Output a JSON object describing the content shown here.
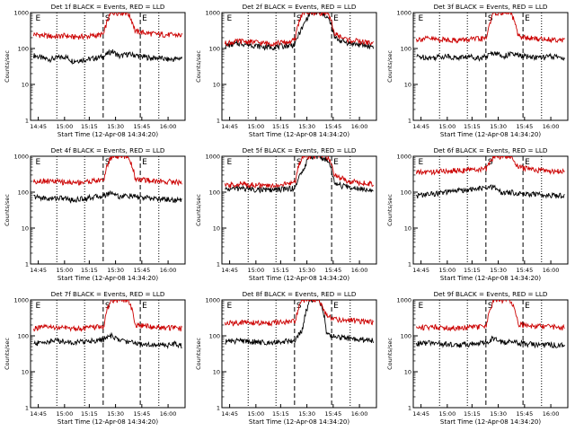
{
  "colors": {
    "events": "#000000",
    "lld": "#cc0000",
    "axis": "#000000"
  },
  "common": {
    "xlabel": "Start Time (12-Apr-08 14:34:20)",
    "ylabel": "Counts/sec",
    "xticks": [
      "14:45",
      "15:00",
      "15:15",
      "15:30",
      "15:45",
      "16:00"
    ],
    "yticks": [
      "1",
      "10",
      "100",
      "1000"
    ],
    "markers": [
      "E",
      "S",
      "E"
    ],
    "yscale": "log",
    "ylim": [
      1,
      1000
    ]
  },
  "chart_data": [
    {
      "type": "line",
      "title": "Det 1f BLACK = Events, RED = LLD",
      "series": [
        {
          "name": "Events",
          "style": "low",
          "values": [
            65,
            55,
            50,
            55,
            60,
            45,
            48,
            50,
            55,
            60,
            85,
            60,
            70,
            65,
            60,
            55,
            55,
            50,
            50,
            55
          ]
        },
        {
          "name": "LLD",
          "style": "high",
          "values": [
            250,
            235,
            220,
            215,
            230,
            210,
            215,
            220,
            230,
            250,
            1000,
            1000,
            1000,
            300,
            280,
            260,
            250,
            240,
            240,
            230
          ]
        }
      ]
    },
    {
      "type": "line",
      "title": "Det 2f BLACK = Events, RED = LLD",
      "series": [
        {
          "name": "Events",
          "style": "low",
          "values": [
            120,
            130,
            140,
            130,
            120,
            110,
            110,
            115,
            120,
            130,
            400,
            1000,
            1000,
            800,
            200,
            160,
            140,
            130,
            120,
            115
          ]
        },
        {
          "name": "LLD",
          "style": "high",
          "values": [
            140,
            150,
            160,
            155,
            150,
            140,
            140,
            145,
            150,
            170,
            1000,
            1000,
            1000,
            1000,
            260,
            200,
            170,
            160,
            150,
            140
          ]
        }
      ]
    },
    {
      "type": "line",
      "title": "Det 3f BLACK = Events, RED = LLD",
      "series": [
        {
          "name": "Events",
          "style": "low",
          "values": [
            60,
            58,
            55,
            60,
            62,
            55,
            58,
            60,
            55,
            60,
            80,
            60,
            70,
            65,
            60,
            58,
            55,
            60,
            58,
            55
          ]
        },
        {
          "name": "LLD",
          "style": "high",
          "values": [
            180,
            190,
            185,
            175,
            180,
            170,
            175,
            180,
            185,
            190,
            1000,
            1000,
            1000,
            220,
            200,
            190,
            185,
            180,
            180,
            175
          ]
        }
      ]
    },
    {
      "type": "line",
      "title": "Det 4f BLACK = Events, RED = LLD",
      "series": [
        {
          "name": "Events",
          "style": "low",
          "values": [
            75,
            70,
            65,
            70,
            68,
            60,
            65,
            70,
            75,
            80,
            100,
            75,
            80,
            75,
            70,
            68,
            65,
            65,
            60,
            60
          ]
        },
        {
          "name": "LLD",
          "style": "high",
          "values": [
            200,
            210,
            205,
            195,
            190,
            185,
            190,
            200,
            210,
            220,
            1000,
            1000,
            1000,
            240,
            220,
            210,
            200,
            200,
            195,
            190
          ]
        }
      ]
    },
    {
      "type": "line",
      "title": "Det 5f BLACK = Events, RED = LLD",
      "series": [
        {
          "name": "Events",
          "style": "low",
          "values": [
            120,
            125,
            130,
            125,
            120,
            115,
            115,
            120,
            125,
            130,
            400,
            1000,
            1000,
            800,
            180,
            150,
            140,
            130,
            125,
            120
          ]
        },
        {
          "name": "LLD",
          "style": "high",
          "values": [
            150,
            160,
            170,
            165,
            160,
            150,
            150,
            160,
            170,
            190,
            1000,
            1000,
            1000,
            1000,
            300,
            240,
            200,
            190,
            180,
            170
          ]
        }
      ]
    },
    {
      "type": "line",
      "title": "Det 6f BLACK = Events, RED = LLD",
      "series": [
        {
          "name": "Events",
          "style": "low",
          "values": [
            80,
            85,
            90,
            95,
            100,
            110,
            115,
            120,
            125,
            130,
            140,
            90,
            100,
            95,
            90,
            88,
            85,
            85,
            80,
            80
          ]
        },
        {
          "name": "LLD",
          "style": "high",
          "values": [
            350,
            360,
            370,
            380,
            390,
            400,
            410,
            420,
            430,
            450,
            1000,
            1000,
            1000,
            500,
            460,
            430,
            400,
            390,
            380,
            370
          ]
        }
      ]
    },
    {
      "type": "line",
      "title": "Det 7f BLACK = Events, RED = LLD",
      "series": [
        {
          "name": "Events",
          "style": "low",
          "values": [
            60,
            65,
            70,
            75,
            70,
            65,
            68,
            72,
            75,
            80,
            100,
            75,
            70,
            65,
            60,
            58,
            55,
            55,
            60,
            55
          ]
        },
        {
          "name": "LLD",
          "style": "high",
          "values": [
            160,
            170,
            175,
            170,
            165,
            160,
            165,
            170,
            175,
            180,
            1000,
            1000,
            1000,
            210,
            190,
            180,
            175,
            170,
            165,
            160
          ]
        }
      ]
    },
    {
      "type": "line",
      "title": "Det 8f BLACK = Events, RED = LLD",
      "series": [
        {
          "name": "Events",
          "style": "low",
          "values": [
            70,
            72,
            75,
            70,
            68,
            65,
            68,
            70,
            72,
            75,
            150,
            1000,
            1000,
            110,
            95,
            90,
            85,
            80,
            80,
            75
          ]
        },
        {
          "name": "LLD",
          "style": "high",
          "values": [
            220,
            230,
            240,
            235,
            230,
            225,
            230,
            235,
            240,
            250,
            1000,
            1000,
            1000,
            350,
            300,
            280,
            270,
            260,
            250,
            245
          ]
        }
      ]
    },
    {
      "type": "line",
      "title": "Det 9f BLACK = Events, RED = LLD",
      "series": [
        {
          "name": "Events",
          "style": "low",
          "values": [
            60,
            62,
            65,
            60,
            58,
            55,
            58,
            60,
            62,
            65,
            90,
            65,
            70,
            65,
            60,
            58,
            55,
            58,
            55,
            55
          ]
        },
        {
          "name": "LLD",
          "style": "high",
          "values": [
            170,
            175,
            180,
            175,
            170,
            165,
            170,
            175,
            180,
            185,
            1000,
            1000,
            1000,
            220,
            200,
            190,
            185,
            180,
            175,
            170
          ]
        }
      ]
    }
  ]
}
